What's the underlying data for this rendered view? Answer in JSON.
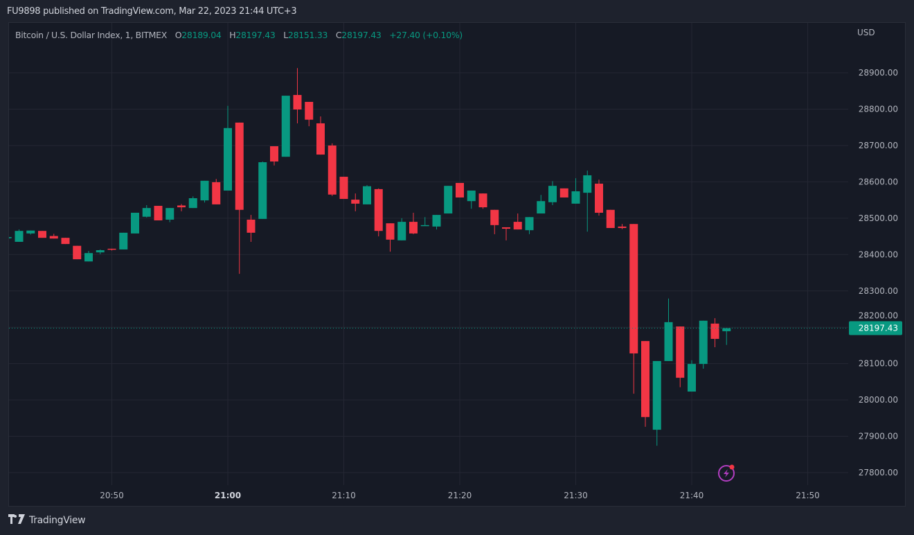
{
  "header": {
    "publish_text": "FU9898 published on TradingView.com, Mar 22, 2023 21:44 UTC+3"
  },
  "legend": {
    "symbol": "Bitcoin / U.S. Dollar Index, 1, BITMEX",
    "open_label": "O",
    "open": "28189.04",
    "high_label": "H",
    "high": "28197.43",
    "low_label": "L",
    "low": "28151.33",
    "close_label": "C",
    "close": "28197.43",
    "change": "+27.40 (+0.10%)"
  },
  "price_axis": {
    "currency": "USD",
    "last_price_label": "28197.43"
  },
  "footer": {
    "logo_text": "TradingView"
  },
  "colors": {
    "up": "#089981",
    "down": "#f23645",
    "background": "#161a25",
    "grid": "#242733",
    "text": "#b2b5be",
    "alert_icon": "#b33ec2"
  },
  "icons": {
    "alert": "lightning-alert-icon",
    "logo": "tradingview-logo-icon"
  },
  "chart_data": {
    "type": "candlestick",
    "title": "",
    "xlabel": "",
    "ylabel": "",
    "grid": true,
    "xlim": [
      "20:41",
      "21:53"
    ],
    "ylim": [
      27708,
      29030
    ],
    "x_ticks": [
      "20:50",
      "21:00",
      "21:10",
      "21:20",
      "21:30",
      "21:40",
      "21:50"
    ],
    "bold_x_ticks": [
      "21:00"
    ],
    "y_ticks": [
      "27800.00",
      "27900.00",
      "28000.00",
      "28100.00",
      "28200.00",
      "28300.00",
      "28400.00",
      "28500.00",
      "28600.00",
      "28700.00",
      "28800.00",
      "28900.00"
    ],
    "last_price": 28197.43,
    "candles": [
      {
        "t": "20:41",
        "o": 28445,
        "h": 28448,
        "l": 28444,
        "c": 28448
      },
      {
        "t": "20:42",
        "o": 28435,
        "h": 28469,
        "l": 28435,
        "c": 28465
      },
      {
        "t": "20:43",
        "o": 28458,
        "h": 28466,
        "l": 28455,
        "c": 28466
      },
      {
        "t": "20:44",
        "o": 28465,
        "h": 28465,
        "l": 28446,
        "c": 28446
      },
      {
        "t": "20:45",
        "o": 28451,
        "h": 28457,
        "l": 28444,
        "c": 28444
      },
      {
        "t": "20:46",
        "o": 28446,
        "h": 28446,
        "l": 28429,
        "c": 28429
      },
      {
        "t": "20:47",
        "o": 28424,
        "h": 28424,
        "l": 28387,
        "c": 28387
      },
      {
        "t": "20:48",
        "o": 28381,
        "h": 28410,
        "l": 28381,
        "c": 28404
      },
      {
        "t": "20:49",
        "o": 28406,
        "h": 28414,
        "l": 28401,
        "c": 28412
      },
      {
        "t": "20:50",
        "o": 28416,
        "h": 28416,
        "l": 28411,
        "c": 28414
      },
      {
        "t": "20:51",
        "o": 28414,
        "h": 28460,
        "l": 28414,
        "c": 28460
      },
      {
        "t": "20:52",
        "o": 28458,
        "h": 28515,
        "l": 28458,
        "c": 28515
      },
      {
        "t": "20:53",
        "o": 28504,
        "h": 28536,
        "l": 28502,
        "c": 28528
      },
      {
        "t": "20:54",
        "o": 28534,
        "h": 28534,
        "l": 28494,
        "c": 28494
      },
      {
        "t": "20:55",
        "o": 28496,
        "h": 28528,
        "l": 28489,
        "c": 28528
      },
      {
        "t": "20:56",
        "o": 28535,
        "h": 28539,
        "l": 28519,
        "c": 28530
      },
      {
        "t": "20:57",
        "o": 28528,
        "h": 28560,
        "l": 28528,
        "c": 28555
      },
      {
        "t": "20:58",
        "o": 28549,
        "h": 28603,
        "l": 28543,
        "c": 28603
      },
      {
        "t": "20:59",
        "o": 28599,
        "h": 28608,
        "l": 28538,
        "c": 28538
      },
      {
        "t": "21:00",
        "o": 28576,
        "h": 28809,
        "l": 28576,
        "c": 28748
      },
      {
        "t": "21:01",
        "o": 28763,
        "h": 28763,
        "l": 28347,
        "c": 28523
      },
      {
        "t": "21:02",
        "o": 28496,
        "h": 28509,
        "l": 28435,
        "c": 28460
      },
      {
        "t": "21:03",
        "o": 28498,
        "h": 28656,
        "l": 28498,
        "c": 28654
      },
      {
        "t": "21:04",
        "o": 28698,
        "h": 28698,
        "l": 28645,
        "c": 28656
      },
      {
        "t": "21:05",
        "o": 28669,
        "h": 28837,
        "l": 28669,
        "c": 28837
      },
      {
        "t": "21:06",
        "o": 28839,
        "h": 28913,
        "l": 28761,
        "c": 28799
      },
      {
        "t": "21:07",
        "o": 28820,
        "h": 28820,
        "l": 28753,
        "c": 28771
      },
      {
        "t": "21:08",
        "o": 28761,
        "h": 28780,
        "l": 28675,
        "c": 28675
      },
      {
        "t": "21:09",
        "o": 28700,
        "h": 28706,
        "l": 28561,
        "c": 28565
      },
      {
        "t": "21:10",
        "o": 28614,
        "h": 28614,
        "l": 28553,
        "c": 28553
      },
      {
        "t": "21:11",
        "o": 28551,
        "h": 28568,
        "l": 28519,
        "c": 28540
      },
      {
        "t": "21:12",
        "o": 28538,
        "h": 28591,
        "l": 28538,
        "c": 28588
      },
      {
        "t": "21:13",
        "o": 28580,
        "h": 28582,
        "l": 28450,
        "c": 28465
      },
      {
        "t": "21:14",
        "o": 28486,
        "h": 28486,
        "l": 28408,
        "c": 28441
      },
      {
        "t": "21:15",
        "o": 28439,
        "h": 28500,
        "l": 28439,
        "c": 28490
      },
      {
        "t": "21:16",
        "o": 28490,
        "h": 28515,
        "l": 28456,
        "c": 28458
      },
      {
        "t": "21:17",
        "o": 28480,
        "h": 28503,
        "l": 28480,
        "c": 28481
      },
      {
        "t": "21:18",
        "o": 28477,
        "h": 28509,
        "l": 28469,
        "c": 28509
      },
      {
        "t": "21:19",
        "o": 28513,
        "h": 28589,
        "l": 28513,
        "c": 28589
      },
      {
        "t": "21:20",
        "o": 28597,
        "h": 28597,
        "l": 28557,
        "c": 28557
      },
      {
        "t": "21:21",
        "o": 28547,
        "h": 28576,
        "l": 28526,
        "c": 28576
      },
      {
        "t": "21:22",
        "o": 28568,
        "h": 28568,
        "l": 28526,
        "c": 28530
      },
      {
        "t": "21:23",
        "o": 28523,
        "h": 28523,
        "l": 28456,
        "c": 28481
      },
      {
        "t": "21:24",
        "o": 28475,
        "h": 28475,
        "l": 28439,
        "c": 28471
      },
      {
        "t": "21:25",
        "o": 28490,
        "h": 28513,
        "l": 28469,
        "c": 28469
      },
      {
        "t": "21:26",
        "o": 28467,
        "h": 28503,
        "l": 28456,
        "c": 28503
      },
      {
        "t": "21:27",
        "o": 28513,
        "h": 28564,
        "l": 28513,
        "c": 28547
      },
      {
        "t": "21:28",
        "o": 28544,
        "h": 28602,
        "l": 28536,
        "c": 28589
      },
      {
        "t": "21:29",
        "o": 28582,
        "h": 28582,
        "l": 28557,
        "c": 28557
      },
      {
        "t": "21:30",
        "o": 28540,
        "h": 28610,
        "l": 28540,
        "c": 28574
      },
      {
        "t": "21:31",
        "o": 28570,
        "h": 28631,
        "l": 28463,
        "c": 28618
      },
      {
        "t": "21:32",
        "o": 28595,
        "h": 28606,
        "l": 28507,
        "c": 28515
      },
      {
        "t": "21:33",
        "o": 28523,
        "h": 28523,
        "l": 28473,
        "c": 28473
      },
      {
        "t": "21:34",
        "o": 28477,
        "h": 28484,
        "l": 28470,
        "c": 28473
      },
      {
        "t": "21:35",
        "o": 28484,
        "h": 28484,
        "l": 28017,
        "c": 28128
      },
      {
        "t": "21:36",
        "o": 28162,
        "h": 28162,
        "l": 27926,
        "c": 27953
      },
      {
        "t": "21:37",
        "o": 27918,
        "h": 28107,
        "l": 27874,
        "c": 28107
      },
      {
        "t": "21:38",
        "o": 28107,
        "h": 28279,
        "l": 28107,
        "c": 28214
      },
      {
        "t": "21:39",
        "o": 28202,
        "h": 28202,
        "l": 28035,
        "c": 28061
      },
      {
        "t": "21:40",
        "o": 28023,
        "h": 28109,
        "l": 28023,
        "c": 28099
      },
      {
        "t": "21:41",
        "o": 28099,
        "h": 28218,
        "l": 28086,
        "c": 28218
      },
      {
        "t": "21:42",
        "o": 28210,
        "h": 28225,
        "l": 28145,
        "c": 28168
      },
      {
        "t": "21:43",
        "o": 28189.04,
        "h": 28197.43,
        "l": 28151.33,
        "c": 28197.43
      }
    ]
  }
}
